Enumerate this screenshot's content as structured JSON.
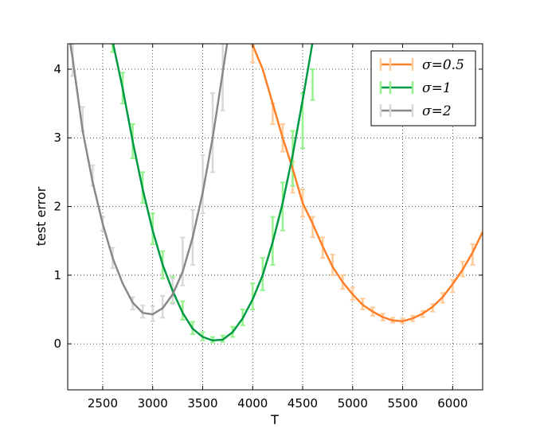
{
  "chart_data": {
    "type": "line",
    "xlabel": "T",
    "ylabel": "test error",
    "xlim": [
      2150,
      6300
    ],
    "ylim": [
      -0.67,
      4.37
    ],
    "xticks": [
      2500,
      3000,
      3500,
      4000,
      4500,
      5000,
      5500,
      6000
    ],
    "yticks": [
      0,
      1,
      2,
      3,
      4
    ],
    "grid": true,
    "legend_position": "top-right",
    "series": [
      {
        "name": "σ=0.5",
        "color": "#ff7f27",
        "errorbar_color": "#ffcb99",
        "x": [
          4000,
          4100,
          4200,
          4300,
          4400,
          4500,
          4600,
          4700,
          4800,
          4900,
          5000,
          5100,
          5200,
          5300,
          5400,
          5500,
          5600,
          5700,
          5800,
          5900,
          6000,
          6100,
          6200,
          6300
        ],
        "y": [
          4.35,
          4.0,
          3.5,
          3.0,
          2.55,
          2.05,
          1.75,
          1.42,
          1.12,
          0.9,
          0.72,
          0.57,
          0.47,
          0.39,
          0.34,
          0.33,
          0.37,
          0.44,
          0.54,
          0.68,
          0.87,
          1.08,
          1.33,
          1.63
        ],
        "err_x": [
          4000,
          4200,
          4300,
          4400,
          4500,
          4600,
          4700,
          4800,
          4900,
          5000,
          5100,
          5200,
          5300,
          5400,
          5500,
          5600,
          5700,
          5800,
          5900,
          6000,
          6100,
          6200
        ],
        "err_low": [
          4.1,
          3.2,
          2.8,
          2.2,
          1.85,
          1.55,
          1.25,
          1.0,
          0.8,
          0.64,
          0.5,
          0.41,
          0.34,
          0.31,
          0.3,
          0.33,
          0.39,
          0.47,
          0.6,
          0.75,
          0.98,
          1.15
        ],
        "err_high": [
          4.35,
          3.5,
          3.2,
          2.65,
          2.25,
          1.85,
          1.55,
          1.3,
          1.0,
          0.82,
          0.66,
          0.53,
          0.44,
          0.38,
          0.37,
          0.41,
          0.48,
          0.58,
          0.74,
          0.93,
          1.2,
          1.45
        ]
      },
      {
        "name": "σ=1",
        "color": "#009a44",
        "errorbar_color": "#95f28c",
        "x": [
          2600,
          2700,
          2800,
          2900,
          3000,
          3100,
          3200,
          3300,
          3400,
          3500,
          3600,
          3700,
          3800,
          3900,
          4000,
          4100,
          4200,
          4300,
          4400,
          4500,
          4600
        ],
        "y": [
          4.4,
          3.72,
          2.95,
          2.25,
          1.65,
          1.15,
          0.77,
          0.45,
          0.22,
          0.1,
          0.05,
          0.06,
          0.17,
          0.37,
          0.65,
          1.0,
          1.48,
          2.05,
          2.75,
          3.55,
          4.4
        ],
        "err_x": [
          2600,
          2700,
          2800,
          2900,
          3000,
          3100,
          3200,
          3300,
          3400,
          3500,
          3600,
          3700,
          3800,
          3900,
          4000,
          4100,
          4200,
          4300,
          4400,
          4500,
          4600
        ],
        "err_low": [
          4.25,
          3.5,
          2.7,
          2.05,
          1.45,
          0.95,
          0.6,
          0.35,
          0.14,
          0.05,
          0.02,
          0.03,
          0.1,
          0.27,
          0.5,
          0.78,
          1.15,
          1.65,
          2.3,
          2.85,
          3.55
        ],
        "err_high": [
          4.37,
          3.95,
          3.2,
          2.5,
          1.9,
          1.35,
          0.98,
          0.62,
          0.32,
          0.17,
          0.1,
          0.12,
          0.25,
          0.5,
          0.88,
          1.25,
          1.85,
          2.35,
          3.1,
          3.65,
          4.0
        ]
      },
      {
        "name": "σ=2",
        "color": "#888888",
        "errorbar_color": "#d8d8d8",
        "x": [
          2150,
          2200,
          2300,
          2400,
          2500,
          2600,
          2700,
          2800,
          2900,
          3000,
          3100,
          3200,
          3300,
          3400,
          3500,
          3600,
          3700,
          3800
        ],
        "y": [
          4.6,
          4.15,
          3.1,
          2.35,
          1.75,
          1.25,
          0.88,
          0.6,
          0.45,
          0.43,
          0.52,
          0.72,
          1.05,
          1.55,
          2.2,
          3.0,
          3.95,
          4.9
        ],
        "err_x": [
          2200,
          2300,
          2400,
          2500,
          2600,
          2800,
          2900,
          3000,
          3100,
          3200,
          3300,
          3400,
          3500,
          3600,
          3700
        ],
        "err_low": [
          3.9,
          3.1,
          2.3,
          1.65,
          1.1,
          0.5,
          0.38,
          0.33,
          0.38,
          0.58,
          0.85,
          1.15,
          1.9,
          2.5,
          3.4
        ],
        "err_high": [
          4.37,
          3.45,
          2.6,
          1.85,
          1.4,
          0.68,
          0.56,
          0.55,
          0.7,
          0.95,
          1.55,
          1.95,
          2.75,
          3.65,
          4.37
        ]
      }
    ]
  }
}
